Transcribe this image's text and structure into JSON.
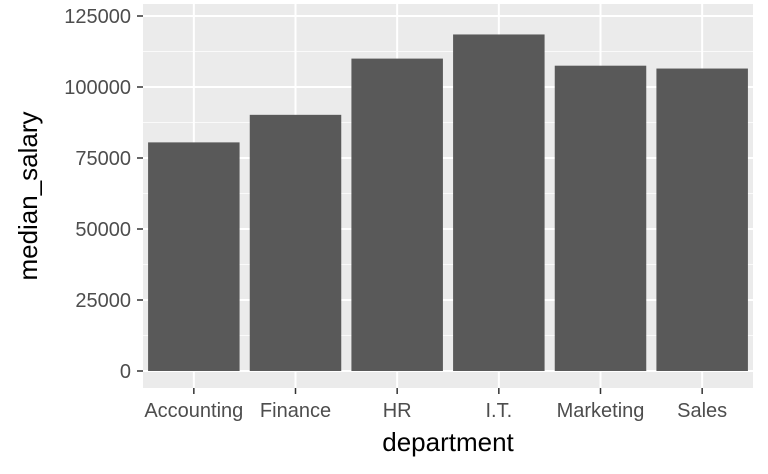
{
  "chart_data": {
    "type": "bar",
    "categories": [
      "Accounting",
      "Finance",
      "HR",
      "I.T.",
      "Marketing",
      "Sales"
    ],
    "values": [
      80500,
      90200,
      110000,
      118500,
      107500,
      106500
    ],
    "xlabel": "department",
    "ylabel": "median_salary",
    "ylim": [
      0,
      125000
    ],
    "yticks": [
      0,
      25000,
      50000,
      75000,
      100000,
      125000
    ],
    "ytick_labels": [
      "0",
      "25000",
      "50000",
      "75000",
      "100000",
      "125000"
    ],
    "grid": true,
    "legend": "none",
    "colors": {
      "panel": "#ebebeb",
      "grid_major": "#ffffff",
      "bar": "#595959",
      "tick": "#333333"
    }
  }
}
